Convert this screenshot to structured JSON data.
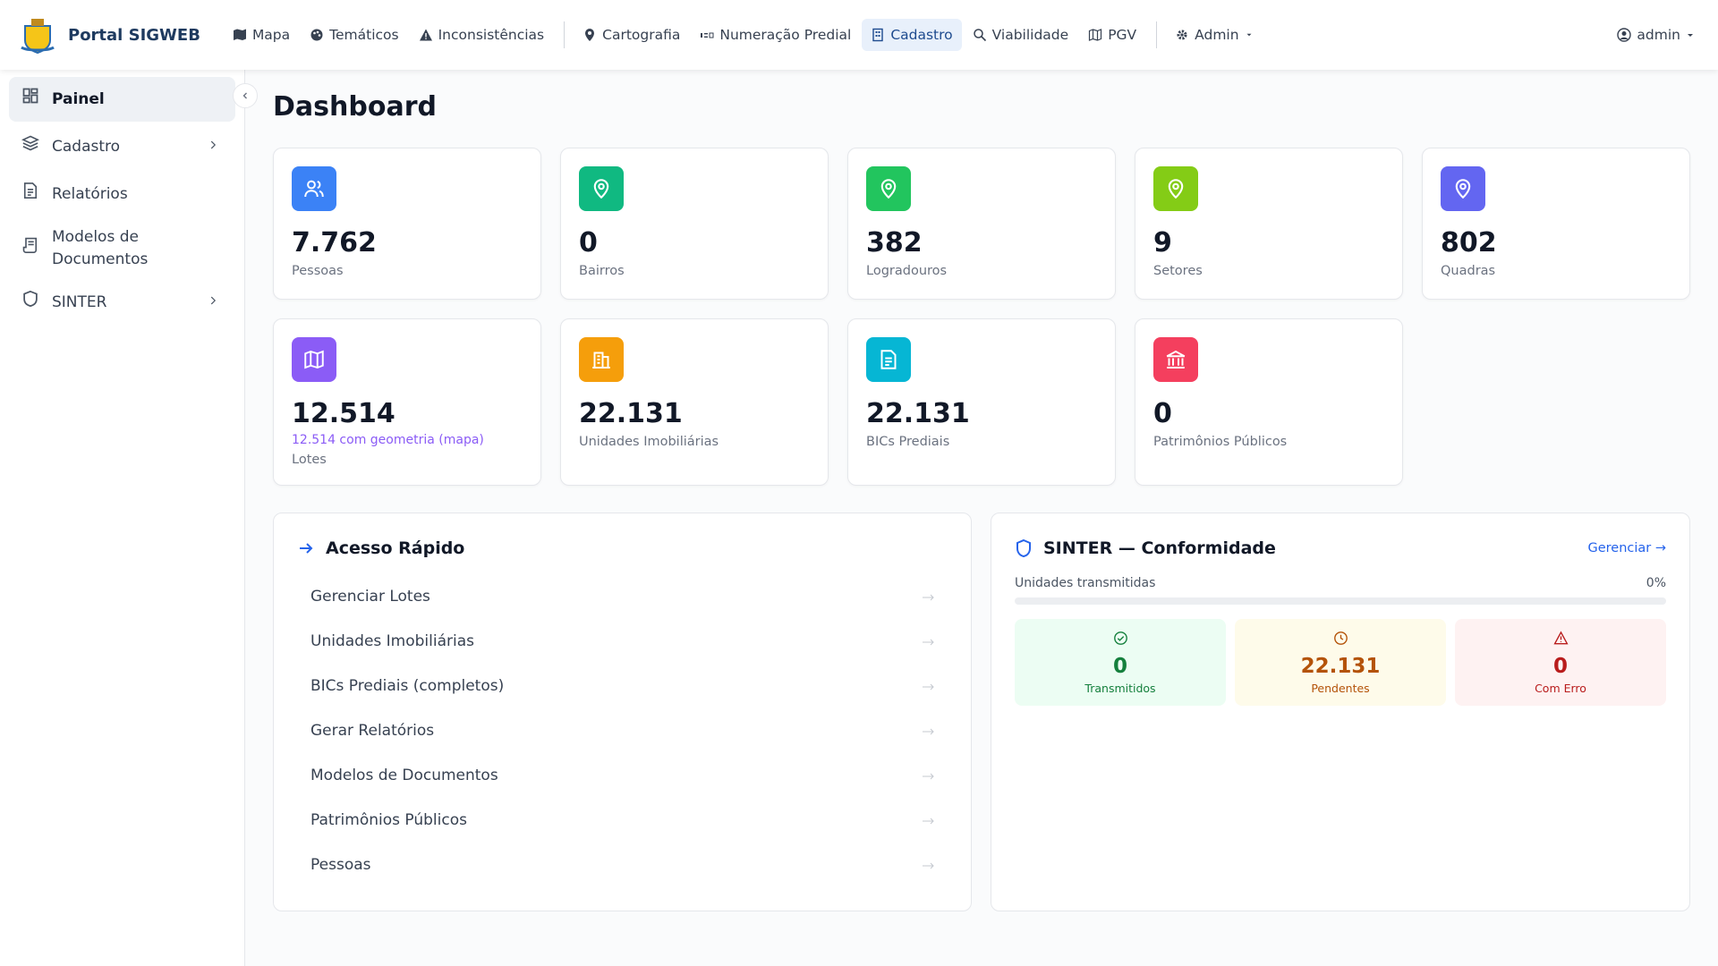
{
  "navbar": {
    "brand": "Portal SIGWEB",
    "items": [
      "Mapa",
      "Temáticos",
      "Inconsistências",
      "Cartografia",
      "Numeração Predial",
      "Cadastro",
      "Viabilidade",
      "PGV",
      "Admin"
    ],
    "user": "admin"
  },
  "sidebar": {
    "items": [
      "Painel",
      "Cadastro",
      "Relatórios",
      "Modelos de Documentos",
      "SINTER"
    ]
  },
  "page_title": "Dashboard",
  "stats": [
    {
      "value": "7.762",
      "label": "Pessoas"
    },
    {
      "value": "0",
      "label": "Bairros"
    },
    {
      "value": "382",
      "label": "Logradouros"
    },
    {
      "value": "9",
      "label": "Setores"
    },
    {
      "value": "802",
      "label": "Quadras"
    },
    {
      "value": "12.514",
      "note": "12.514 com geometria (mapa)",
      "label": "Lotes"
    },
    {
      "value": "22.131",
      "label": "Unidades Imobiliárias"
    },
    {
      "value": "22.131",
      "label": "BICs Prediais"
    },
    {
      "value": "0",
      "label": "Patrimônios Públicos"
    }
  ],
  "quick_access": {
    "title": "Acesso Rápido",
    "items": [
      "Gerenciar Lotes",
      "Unidades Imobiliárias",
      "BICs Prediais (completos)",
      "Gerar Relatórios",
      "Modelos de Documentos",
      "Patrimônios Públicos",
      "Pessoas"
    ]
  },
  "sinter": {
    "title": "SINTER — Conformidade",
    "link": "Gerenciar →",
    "progress_label": "Unidades transmitidas",
    "progress_value": "0%",
    "counts": [
      {
        "value": "0",
        "label": "Transmitidos"
      },
      {
        "value": "22.131",
        "label": "Pendentes"
      },
      {
        "value": "0",
        "label": "Com Erro"
      }
    ]
  }
}
